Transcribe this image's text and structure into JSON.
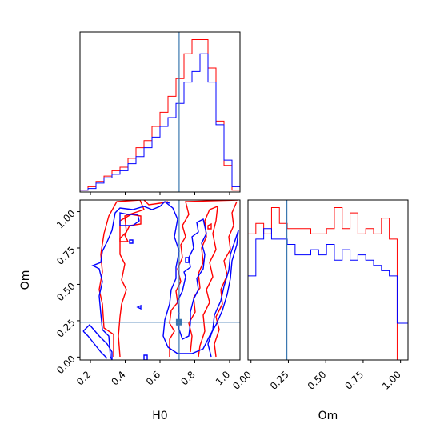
{
  "chart_data": {
    "type": "corner",
    "parameters": [
      "H0",
      "Om"
    ],
    "truth": {
      "H0": 0.71,
      "Om": 0.24,
      "color": "#3b78b0"
    },
    "colors": {
      "red_series": "#ff0000",
      "blue_series": "#0000ff"
    },
    "panels": [
      {
        "id": "hist-H0",
        "type": "step-histogram",
        "xlim": [
          0.14,
          1.06
        ],
        "y_ticks_shown": false,
        "bin_edges": [
          0.14,
          0.186,
          0.232,
          0.278,
          0.324,
          0.37,
          0.416,
          0.462,
          0.508,
          0.554,
          0.6,
          0.646,
          0.692,
          0.738,
          0.784,
          0.83,
          0.876,
          0.922,
          0.968,
          1.014,
          1.06
        ],
        "series": [
          {
            "color": "#ff0000",
            "counts": [
              1,
              3,
              6,
              9,
              12,
              14,
              19,
              25,
              29,
              37,
              45,
              54,
              64,
              78,
              86,
              86,
              70,
              40,
              15,
              1
            ]
          },
          {
            "color": "#0000ff",
            "counts": [
              1,
              2,
              5,
              8,
              10,
              12,
              16,
              20,
              25,
              31,
              37,
              42,
              50,
              62,
              68,
              78,
              62,
              38,
              18,
              3
            ]
          }
        ]
      },
      {
        "id": "contour-H0-Om",
        "type": "contour",
        "xlim": [
          0.14,
          1.06
        ],
        "ylim": [
          -0.02,
          1.08
        ],
        "x_ticks": [
          "0.2",
          "0.4",
          "0.6",
          "0.8",
          "1.0"
        ],
        "y_ticks": [
          "0.00",
          "0.25",
          "0.50",
          "0.75",
          "1.00"
        ],
        "xlabel": "H0",
        "ylabel": "Om",
        "truth_point": [
          0.71,
          0.24
        ]
      },
      {
        "id": "hist-Om",
        "type": "step-histogram",
        "xlim": [
          -0.02,
          1.05
        ],
        "x_ticks": [
          "0.00",
          "0.25",
          "0.50",
          "0.75",
          "1.00"
        ],
        "xlabel": "Om",
        "y_ticks_shown": false,
        "bin_edges": [
          -0.02,
          0.0325,
          0.085,
          0.1375,
          0.19,
          0.2425,
          0.295,
          0.3475,
          0.4,
          0.4525,
          0.505,
          0.5575,
          0.61,
          0.6625,
          0.715,
          0.7675,
          0.82,
          0.8725,
          0.925,
          0.9775,
          1.03,
          1.05
        ],
        "series": [
          {
            "color": "#ff0000",
            "counts": [
              48,
              52,
              48,
              58,
              52,
              50,
              50,
              50,
              48,
              48,
              50,
              58,
              50,
              56,
              48,
              50,
              48,
              54,
              46,
              0,
              0
            ]
          },
          {
            "color": "#0000ff",
            "counts": [
              32,
              46,
              50,
              46,
              46,
              44,
              40,
              40,
              42,
              40,
              44,
              38,
              42,
              38,
              40,
              38,
              36,
              34,
              32,
              14,
              14
            ]
          }
        ]
      }
    ]
  }
}
